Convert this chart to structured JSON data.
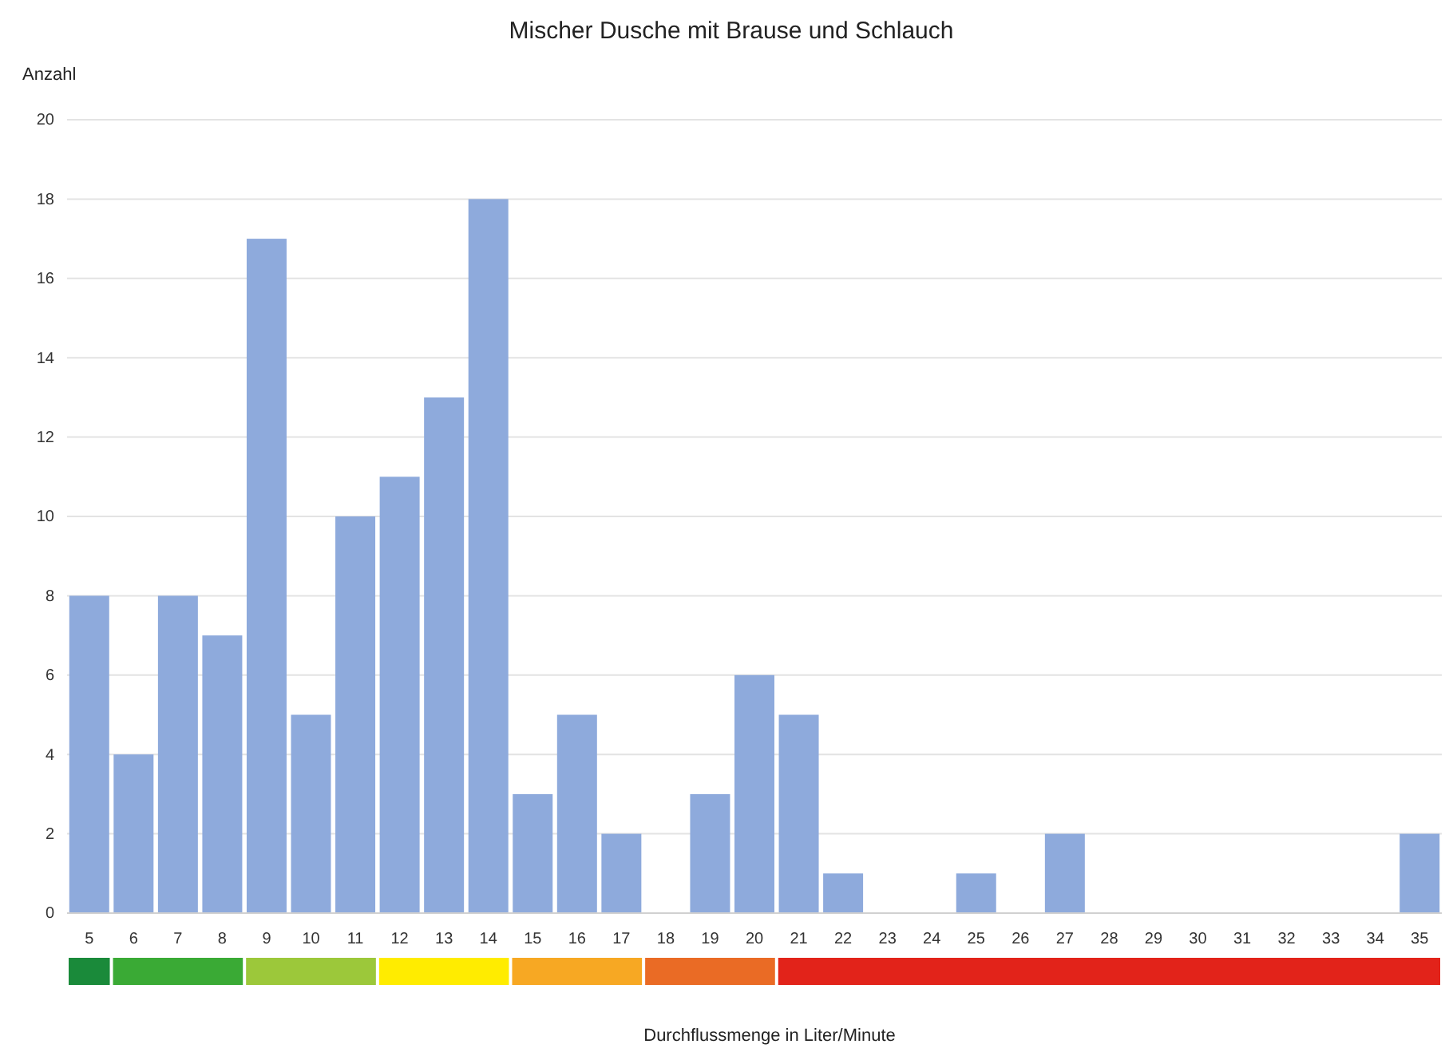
{
  "chart_data": {
    "type": "bar",
    "title": "Mischer Dusche mit Brause und Schlauch",
    "xlabel": "Durchflussmenge in Liter/Minute",
    "ylabel": "Anzahl",
    "categories": [
      "5",
      "6",
      "7",
      "8",
      "9",
      "10",
      "11",
      "12",
      "13",
      "14",
      "15",
      "16",
      "17",
      "18",
      "19",
      "20",
      "21",
      "22",
      "23",
      "24",
      "25",
      "26",
      "27",
      "28",
      "29",
      "30",
      "31",
      "32",
      "33",
      "34",
      "35"
    ],
    "values": [
      8,
      4,
      8,
      7,
      17,
      5,
      10,
      11,
      13,
      18,
      3,
      5,
      2,
      0,
      3,
      6,
      5,
      1,
      0,
      0,
      1,
      0,
      2,
      0,
      0,
      0,
      0,
      0,
      0,
      0,
      2
    ],
    "color": "#8eaadc",
    "ylim": [
      0,
      20
    ],
    "yticks": [
      0,
      2,
      4,
      6,
      8,
      10,
      12,
      14,
      16,
      18,
      20
    ],
    "grid": "y"
  }
}
